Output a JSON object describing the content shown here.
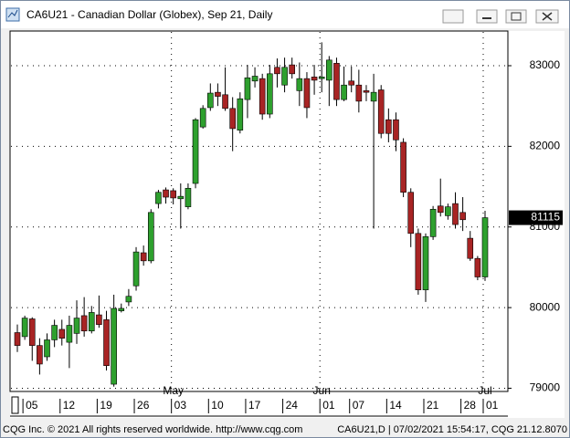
{
  "window": {
    "footer_left": "CQG Inc. © 2021 All rights reserved worldwide. http://www.cqg.com",
    "footer_right": "CA6U21,D | 07/02/2021 15:54:17, CQG 21.12.8070"
  },
  "chart_data": {
    "type": "candlestick",
    "title": "CA6U21 - Canadian Dollar (Globex), Sep 21, Daily",
    "categories": [
      null,
      "05",
      null,
      null,
      null,
      null,
      "12",
      null,
      null,
      null,
      null,
      "19",
      null,
      null,
      null,
      null,
      "26",
      null,
      null,
      null,
      null,
      "03",
      null,
      null,
      null,
      null,
      "10",
      null,
      null,
      null,
      null,
      "17",
      null,
      null,
      null,
      null,
      "24",
      null,
      null,
      null,
      null,
      "01",
      null,
      null,
      null,
      "07",
      null,
      null,
      null,
      null,
      "14",
      null,
      null,
      null,
      null,
      "21",
      null,
      null,
      null,
      null,
      "28",
      null,
      null,
      "01"
    ],
    "months": [
      null,
      null,
      null,
      null,
      null,
      null,
      null,
      null,
      null,
      null,
      null,
      null,
      null,
      null,
      null,
      null,
      null,
      null,
      null,
      null,
      null,
      "May",
      null,
      null,
      null,
      null,
      null,
      null,
      null,
      null,
      null,
      null,
      null,
      null,
      null,
      null,
      null,
      null,
      null,
      null,
      null,
      "Jun",
      null,
      null,
      null,
      null,
      null,
      null,
      null,
      null,
      null,
      null,
      null,
      null,
      null,
      null,
      null,
      null,
      null,
      null,
      null,
      null,
      null,
      "Jul"
    ],
    "open": [
      79690,
      79640,
      79860,
      79530,
      79390,
      79600,
      79730,
      79570,
      79680,
      79900,
      79710,
      79910,
      79850,
      79050,
      79960,
      80070,
      80270,
      80680,
      80580,
      81290,
      81460,
      81450,
      81350,
      81250,
      81540,
      82240,
      82480,
      82670,
      82640,
      82470,
      82200,
      82580,
      82810,
      82840,
      82400,
      82980,
      82760,
      83010,
      82690,
      82840,
      82860,
      82840,
      82820,
      83030,
      82580,
      82810,
      82760,
      82690,
      82560,
      82700,
      82330,
      82330,
      82050,
      81430,
      80920,
      80220,
      80880,
      81260,
      81140,
      81290,
      81180,
      80860,
      80610,
      80380
    ],
    "high": [
      79790,
      79900,
      79880,
      79620,
      79680,
      79850,
      79850,
      79900,
      80090,
      80130,
      80020,
      80150,
      79960,
      80160,
      80050,
      80230,
      80750,
      80770,
      81220,
      81460,
      81490,
      81480,
      81540,
      81540,
      82350,
      82510,
      82780,
      82780,
      82980,
      82610,
      82670,
      83010,
      82980,
      82900,
      83010,
      83090,
      83100,
      83100,
      83040,
      82920,
      83010,
      83290,
      83120,
      83100,
      82990,
      82990,
      82950,
      82760,
      82900,
      82760,
      82470,
      82420,
      82100,
      81480,
      80980,
      80920,
      81260,
      81600,
      81290,
      81430,
      81370,
      80950,
      80640,
      81200
    ],
    "low": [
      79450,
      79600,
      79340,
      79170,
      79340,
      79510,
      79530,
      79250,
      79550,
      79640,
      79680,
      79750,
      79220,
      79020,
      79940,
      80020,
      80210,
      80520,
      80550,
      81230,
      81290,
      81280,
      80980,
      81220,
      81480,
      82220,
      82440,
      82500,
      82440,
      81940,
      82160,
      82350,
      82730,
      82330,
      82350,
      82730,
      82670,
      82840,
      82500,
      82350,
      82640,
      82670,
      82500,
      82500,
      82560,
      82670,
      82420,
      82560,
      80980,
      82100,
      82050,
      81940,
      81370,
      80750,
      80160,
      80070,
      80840,
      81130,
      81090,
      80980,
      80950,
      80580,
      80340,
      80330
    ],
    "close": [
      79530,
      79870,
      79530,
      79300,
      79600,
      79780,
      79620,
      79780,
      79870,
      79710,
      79940,
      79790,
      79280,
      79990,
      79990,
      80140,
      80690,
      80580,
      81180,
      81430,
      81370,
      81360,
      81380,
      81480,
      82330,
      82470,
      82660,
      82620,
      82470,
      82220,
      82590,
      82850,
      82870,
      82400,
      82900,
      82900,
      82980,
      82900,
      82840,
      82480,
      82820,
      82860,
      83070,
      82580,
      82760,
      82760,
      82560,
      82670,
      82670,
      82160,
      82160,
      82080,
      81430,
      80920,
      80220,
      80880,
      81220,
      81180,
      81250,
      81030,
      81090,
      80610,
      80380,
      81115
    ],
    "up_color": "#2ea02e",
    "down_color": "#a82424",
    "ylim": [
      78960,
      83430
    ],
    "yticks": [
      79000,
      80000,
      81000,
      82000,
      83000
    ],
    "grid": true
  }
}
